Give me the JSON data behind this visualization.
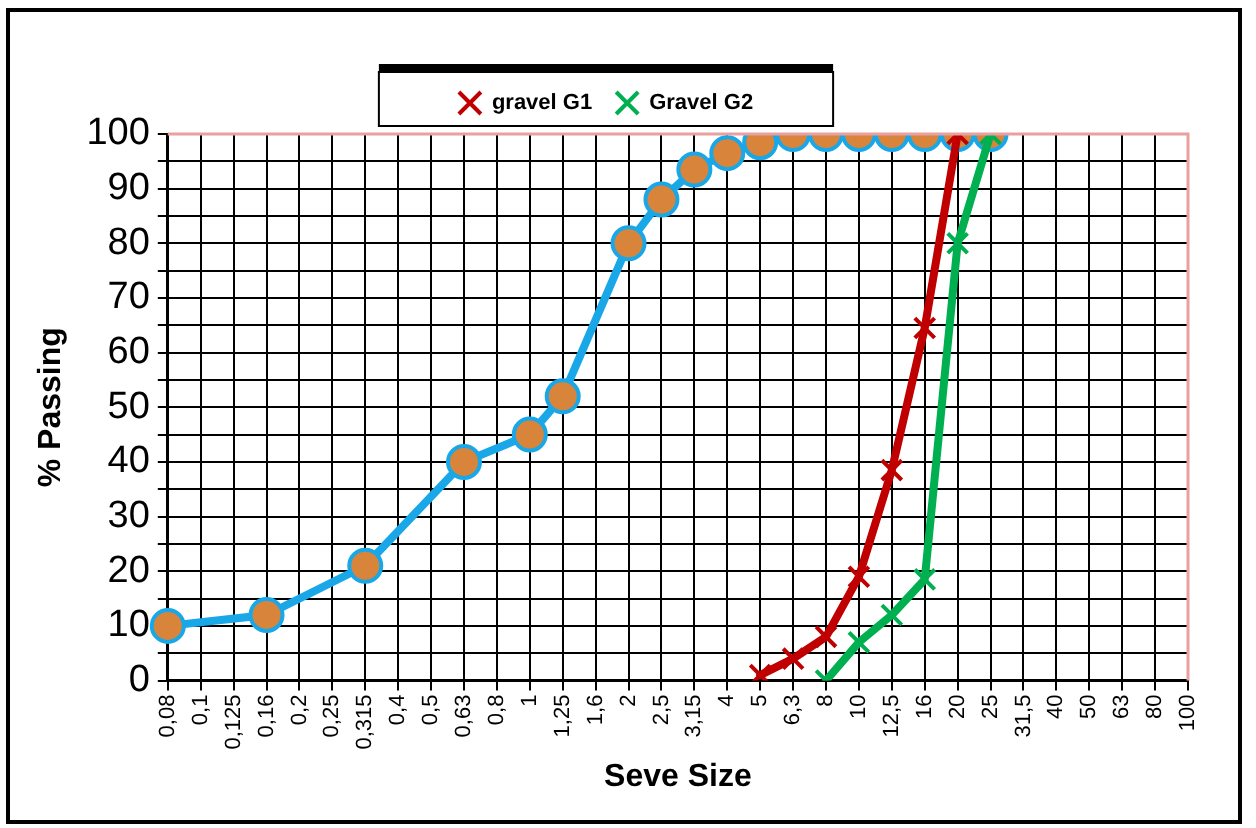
{
  "chart_data": {
    "type": "line",
    "xlabel": "Seve Size",
    "ylabel": "% Passing",
    "categories": [
      "0,08",
      "0,1",
      "0,125",
      "0,16",
      "0,2",
      "0,25",
      "0,315",
      "0,4",
      "0,5",
      "0,63",
      "0,8",
      "1",
      "1,25",
      "1,6",
      "2",
      "2,5",
      "3,15",
      "4",
      "5",
      "6,3",
      "8",
      "10",
      "12,5",
      "16",
      "20",
      "25",
      "31,5",
      "40",
      "50",
      "63",
      "80",
      "100"
    ],
    "series": [
      {
        "color": "#1aa7e8",
        "marker": "circle",
        "values": [
          10,
          null,
          null,
          12,
          null,
          null,
          21,
          null,
          null,
          40,
          null,
          45,
          52,
          null,
          80,
          88,
          93.5,
          96.5,
          98.5,
          100,
          100,
          100,
          100,
          100,
          100,
          100,
          null,
          null,
          null,
          null,
          null,
          null
        ]
      },
      {
        "name": "gravel G1",
        "color": "#c00000",
        "marker": "cross",
        "values": [
          null,
          null,
          null,
          null,
          null,
          null,
          null,
          null,
          null,
          null,
          null,
          null,
          null,
          null,
          null,
          null,
          null,
          null,
          1,
          4,
          8,
          19,
          38.5,
          64.5,
          100,
          null,
          null,
          null,
          null,
          null,
          null,
          null
        ]
      },
      {
        "name": "Gravel G2",
        "color": "#00b050",
        "marker": "cross",
        "values": [
          null,
          null,
          null,
          null,
          null,
          null,
          null,
          null,
          null,
          null,
          null,
          null,
          null,
          null,
          null,
          null,
          null,
          null,
          null,
          null,
          0,
          7,
          12,
          18.5,
          80,
          100,
          null,
          null,
          null,
          null,
          null,
          null
        ]
      }
    ],
    "ylim": [
      0,
      100
    ],
    "yticks": [
      0,
      {
        "value": 5,
        "label": null
      },
      10,
      {
        "value": 15,
        "label": null
      },
      20,
      {
        "value": 25,
        "label": null
      },
      30,
      {
        "value": 35,
        "label": null
      },
      40,
      {
        "value": 45,
        "label": null
      },
      50,
      {
        "value": 55,
        "label": null
      },
      60,
      {
        "value": 65,
        "label": null
      },
      70,
      {
        "value": 75,
        "label": null
      },
      80,
      {
        "value": 85,
        "label": null
      },
      90,
      {
        "value": 95,
        "label": null
      },
      100
    ],
    "grid": true,
    "legend": "top",
    "line_style": "solid"
  }
}
